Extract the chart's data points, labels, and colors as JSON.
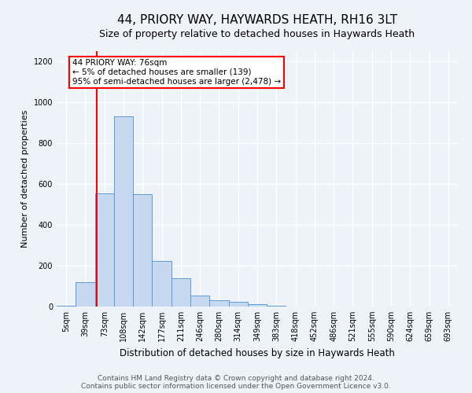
{
  "title1": "44, PRIORY WAY, HAYWARDS HEATH, RH16 3LT",
  "title2": "Size of property relative to detached houses in Haywards Heath",
  "xlabel": "Distribution of detached houses by size in Haywards Heath",
  "ylabel": "Number of detached properties",
  "bar_labels": [
    "5sqm",
    "39sqm",
    "73sqm",
    "108sqm",
    "142sqm",
    "177sqm",
    "211sqm",
    "246sqm",
    "280sqm",
    "314sqm",
    "349sqm",
    "383sqm",
    "418sqm",
    "452sqm",
    "486sqm",
    "521sqm",
    "555sqm",
    "590sqm",
    "624sqm",
    "659sqm",
    "693sqm"
  ],
  "bar_values": [
    5,
    120,
    555,
    930,
    550,
    225,
    140,
    55,
    30,
    25,
    10,
    5,
    0,
    0,
    0,
    0,
    0,
    0,
    0,
    0,
    0
  ],
  "bar_color": "#c6d9f1",
  "bar_edge_color": "#5b9bd5",
  "red_line_color": "red",
  "annotation_text": "44 PRIORY WAY: 76sqm\n← 5% of detached houses are smaller (139)\n95% of semi-detached houses are larger (2,478) →",
  "annotation_box_color": "white",
  "annotation_box_edge_color": "red",
  "ylim": [
    0,
    1250
  ],
  "yticks": [
    0,
    200,
    400,
    600,
    800,
    1000,
    1200
  ],
  "footer1": "Contains HM Land Registry data © Crown copyright and database right 2024.",
  "footer2": "Contains public sector information licensed under the Open Government Licence v3.0.",
  "background_color": "#eef2f9",
  "plot_bg_color": "#eef2f9",
  "grid_color": "white",
  "title1_fontsize": 11,
  "title2_fontsize": 9,
  "ylabel_fontsize": 8,
  "xlabel_fontsize": 8.5,
  "tick_fontsize": 7,
  "footer_fontsize": 6.5
}
